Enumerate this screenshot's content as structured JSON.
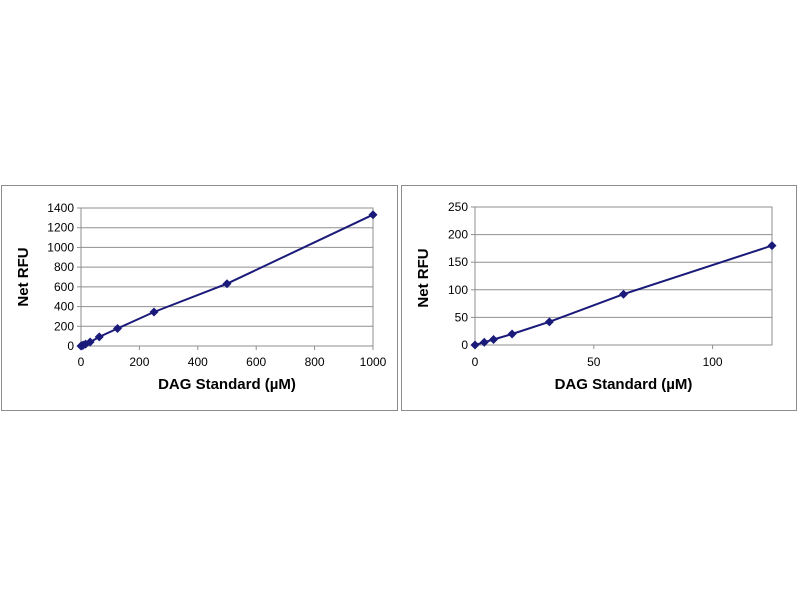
{
  "chart_data": [
    {
      "type": "line",
      "xlabel": "DAG Standard (µM)",
      "ylabel": "Net RFU",
      "xlim": [
        0,
        1000
      ],
      "ylim": [
        0,
        1400
      ],
      "xticks": [
        0,
        200,
        400,
        600,
        800,
        1000
      ],
      "yticks": [
        0,
        200,
        400,
        600,
        800,
        1000,
        1200,
        1400
      ],
      "grid": "horizontal",
      "series": [
        {
          "color": "#1a1a7a",
          "x": [
            0,
            3.9,
            7.8,
            15.6,
            31.3,
            62.5,
            125,
            250,
            500,
            1000
          ],
          "y": [
            0,
            4,
            9,
            19,
            40,
            92,
            178,
            345,
            632,
            1332
          ]
        }
      ]
    },
    {
      "type": "line",
      "xlabel": "DAG Standard (µM)",
      "ylabel": "Net RFU",
      "xlim": [
        0,
        125
      ],
      "ylim": [
        0,
        250
      ],
      "xticks": [
        0,
        50,
        100
      ],
      "yticks": [
        0,
        50,
        100,
        150,
        200,
        250
      ],
      "grid": "horizontal",
      "series": [
        {
          "color": "#1a1a7a",
          "x": [
            0,
            3.9,
            7.8,
            15.6,
            31.3,
            62.5,
            125
          ],
          "y": [
            0,
            5,
            10,
            20,
            42,
            92,
            180
          ]
        }
      ]
    }
  ]
}
